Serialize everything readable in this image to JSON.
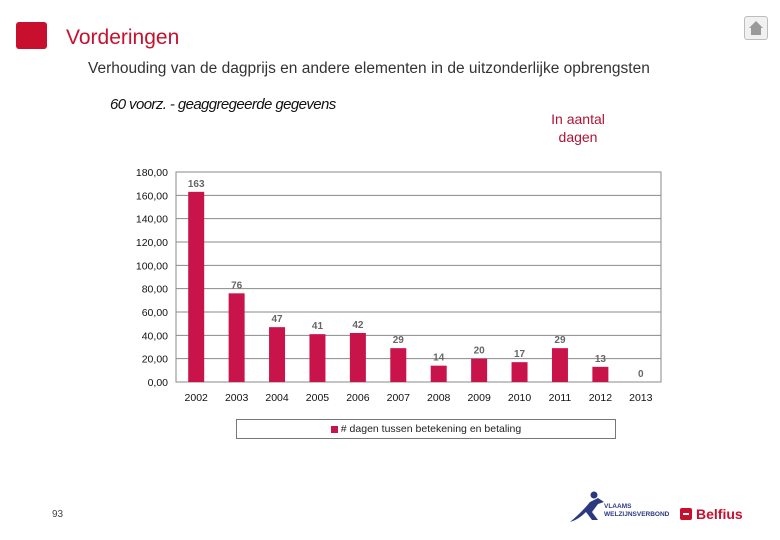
{
  "header": {
    "title": "Vorderingen",
    "subtitle": "Verhouding van de dagprijs en andere elementen in de uitzonderlijke opbrengsten",
    "note": "60 voorz. - geaggregeerde gegevens",
    "unit_line1": "In aantal",
    "unit_line2": "dagen"
  },
  "footer": {
    "page_number": "93",
    "vvsg_line1": "VLAAMS",
    "vvsg_line2": "WELZIJNSVERBOND",
    "belfius": "Belfius"
  },
  "colors": {
    "accent": "#c8102e",
    "bar": "#c8144a",
    "unit_text": "#b01234"
  },
  "chart_data": {
    "type": "bar",
    "categories": [
      "2002",
      "2003",
      "2004",
      "2005",
      "2006",
      "2007",
      "2008",
      "2009",
      "2010",
      "2011",
      "2012",
      "2013"
    ],
    "values": [
      163,
      76,
      47,
      41,
      42,
      29,
      14,
      20,
      17,
      29,
      13,
      0
    ],
    "data_labels": [
      "163",
      "76",
      "47",
      "41",
      "42",
      "29",
      "14",
      "20",
      "17",
      "29",
      "13",
      "0"
    ],
    "ylim": [
      0,
      180
    ],
    "yticks": [
      "0,00",
      "20,00",
      "40,00",
      "60,00",
      "80,00",
      "100,00",
      "120,00",
      "140,00",
      "160,00",
      "180,00"
    ],
    "grid": true,
    "legend": "# dagen tussen betekening en betaling",
    "legend_position": "bottom"
  }
}
